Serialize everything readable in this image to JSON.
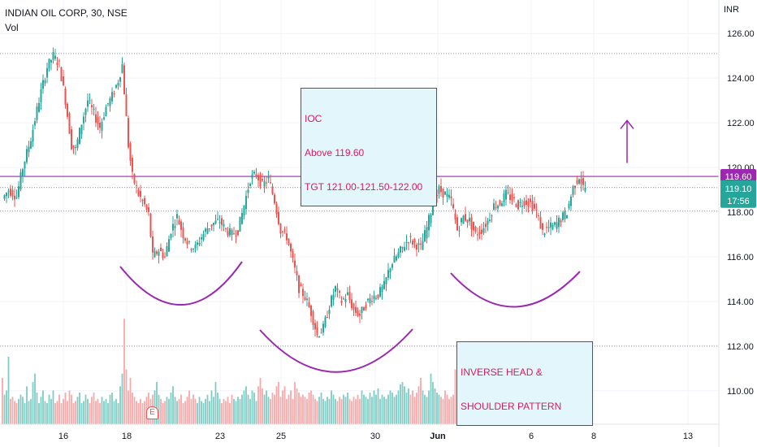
{
  "header": {
    "symbol_line": "INDIAN OIL CORP, 30, NSE",
    "volume_label": "Vol"
  },
  "axis": {
    "currency": "INR"
  },
  "annotations": {
    "ioc_box": {
      "line1": "IOC",
      "line2": "Above 119.60",
      "line3": "TGT 121.00-121.50-122.00"
    },
    "pattern_box": {
      "line1": "INVERSE HEAD &",
      "line2": "SHOULDER PATTERN"
    },
    "earnings_marker": "E"
  },
  "badges": {
    "level": "119.60",
    "last_price": "119.10",
    "countdown": "17:56"
  },
  "colors": {
    "up": "#26a69a",
    "down": "#ef5350",
    "up_vol": "#80cbc4",
    "down_vol": "#f7a9a7",
    "neckline": "#9c27b0",
    "curve": "#9c27b0",
    "grid": "#f0f3fa",
    "badge_level": "#9c27b0",
    "badge_price": "#26a69a"
  },
  "chart_data": {
    "type": "candlestick",
    "title": "INDIAN OIL CORP, 30, NSE",
    "ylabel": "INR",
    "ylim": [
      108.5,
      127.5
    ],
    "y_ticks": [
      110,
      112,
      114,
      116,
      118,
      120,
      122,
      124,
      126
    ],
    "x_ticks": [
      "16",
      "18",
      "23",
      "25",
      "30",
      "Jun",
      "6",
      "8",
      "13"
    ],
    "neckline": 119.6,
    "last_price": 119.1,
    "horizontal_dotted_levels": [
      125.1,
      119.1,
      118.05,
      112.0
    ],
    "target_arrow": [
      120.2,
      122.1
    ],
    "price_path": [
      [
        0,
        118.6
      ],
      [
        3,
        119.0
      ],
      [
        7,
        118.7
      ],
      [
        10,
        120.0
      ],
      [
        14,
        121.3
      ],
      [
        18,
        123.0
      ],
      [
        22,
        124.5
      ],
      [
        25,
        125.0
      ],
      [
        28,
        124.6
      ],
      [
        31,
        123.0
      ],
      [
        34,
        121.0
      ],
      [
        36,
        120.8
      ],
      [
        39,
        122.0
      ],
      [
        42,
        123.0
      ],
      [
        45,
        122.4
      ],
      [
        48,
        121.8
      ],
      [
        51,
        122.7
      ],
      [
        54,
        123.2
      ],
      [
        57,
        123.9
      ],
      [
        59,
        124.6
      ],
      [
        62,
        121.0
      ],
      [
        64,
        119.6
      ],
      [
        67,
        118.8
      ],
      [
        70,
        118.3
      ],
      [
        72,
        117.9
      ],
      [
        74,
        116.0
      ],
      [
        77,
        116.3
      ],
      [
        80,
        116.0
      ],
      [
        83,
        117.2
      ],
      [
        86,
        117.8
      ],
      [
        89,
        117.0
      ],
      [
        92,
        116.5
      ],
      [
        95,
        116.4
      ],
      [
        98,
        116.9
      ],
      [
        101,
        117.3
      ],
      [
        104,
        117.5
      ],
      [
        107,
        117.6
      ],
      [
        110,
        117.2
      ],
      [
        113,
        117.0
      ],
      [
        116,
        117.2
      ],
      [
        119,
        118.3
      ],
      [
        122,
        119.5
      ],
      [
        125,
        119.7
      ],
      [
        128,
        119.2
      ],
      [
        131,
        119.5
      ],
      [
        134,
        118.5
      ],
      [
        137,
        117.2
      ],
      [
        140,
        116.9
      ],
      [
        143,
        115.8
      ],
      [
        146,
        114.6
      ],
      [
        149,
        114.2
      ],
      [
        152,
        113.5
      ],
      [
        155,
        112.5
      ],
      [
        158,
        112.8
      ],
      [
        161,
        113.8
      ],
      [
        164,
        114.6
      ],
      [
        167,
        114.0
      ],
      [
        170,
        114.3
      ],
      [
        173,
        113.6
      ],
      [
        176,
        113.4
      ],
      [
        179,
        113.9
      ],
      [
        182,
        114.2
      ],
      [
        185,
        114.3
      ],
      [
        188,
        114.7
      ],
      [
        191,
        115.6
      ],
      [
        194,
        116.0
      ],
      [
        197,
        116.4
      ],
      [
        200,
        116.8
      ],
      [
        203,
        116.6
      ],
      [
        206,
        116.4
      ],
      [
        209,
        117.3
      ],
      [
        212,
        118.4
      ],
      [
        215,
        119.0
      ],
      [
        218,
        118.8
      ],
      [
        221,
        118.5
      ],
      [
        224,
        117.2
      ],
      [
        227,
        117.8
      ],
      [
        230,
        117.6
      ],
      [
        233,
        117.0
      ],
      [
        236,
        117.2
      ],
      [
        239,
        117.6
      ],
      [
        242,
        118.3
      ],
      [
        245,
        118.4
      ],
      [
        248,
        118.8
      ],
      [
        251,
        118.6
      ],
      [
        254,
        118.3
      ],
      [
        257,
        118.5
      ],
      [
        260,
        118.4
      ],
      [
        263,
        118.0
      ],
      [
        266,
        117.1
      ],
      [
        269,
        117.3
      ],
      [
        272,
        117.4
      ],
      [
        275,
        117.7
      ],
      [
        278,
        118.0
      ],
      [
        281,
        119.1
      ],
      [
        284,
        119.6
      ],
      [
        286,
        119.1
      ]
    ],
    "volume": [
      2.2,
      1.4,
      1.6,
      3.2,
      1.2,
      1.3,
      1.1,
      1.0,
      1.2,
      1.4,
      1.3,
      1.0,
      1.8,
      1.1,
      1.2,
      2.0,
      2.4,
      1.5,
      1.0,
      1.3,
      1.6,
      1.1,
      1.0,
      1.4,
      1.2,
      1.6,
      1.0,
      1.1,
      1.4,
      1.0,
      1.2,
      1.5,
      1.1,
      1.6,
      1.4,
      1.0,
      1.1,
      1.3,
      1.5,
      1.0,
      1.1,
      1.4,
      1.2,
      1.0,
      1.3,
      1.5,
      1.1,
      1.2,
      1.0,
      1.3,
      1.1,
      1.2,
      1.0,
      1.4,
      1.5,
      1.1,
      1.2,
      1.0,
      1.8,
      2.4,
      5.0,
      2.6,
      1.6,
      2.2,
      1.5,
      1.3,
      1.1,
      1.0,
      1.2,
      1.0,
      1.1,
      1.3,
      1.5,
      1.2,
      1.4,
      1.6,
      2.0,
      1.4,
      1.2,
      1.0,
      1.1,
      1.3,
      1.2,
      1.5,
      1.8,
      1.3,
      1.1,
      1.2,
      1.4,
      1.0,
      1.1,
      1.3,
      1.6,
      1.2,
      1.4,
      1.2,
      1.0,
      1.3,
      1.1,
      1.0,
      1.2,
      1.4,
      1.1,
      1.6,
      1.3,
      2.0,
      1.5,
      1.2,
      1.0,
      1.2,
      1.1,
      1.3,
      1.0,
      1.4,
      1.2,
      1.1,
      1.3,
      1.2,
      1.4,
      1.6,
      1.8,
      1.4,
      1.2,
      1.6,
      1.5,
      1.1,
      1.8,
      2.2,
      1.7,
      1.4,
      1.6,
      1.3,
      1.2,
      1.5,
      1.4,
      1.8,
      2.0,
      1.3,
      1.6,
      1.8,
      1.2,
      1.4,
      1.6,
      1.2,
      2.0,
      1.7,
      1.5,
      1.3,
      1.4,
      1.3,
      1.2,
      1.5,
      1.6,
      1.4,
      1.2,
      1.1,
      1.3,
      1.5,
      1.2,
      1.1,
      1.3,
      1.2,
      1.6,
      1.4,
      1.2,
      1.1,
      1.3,
      1.2,
      1.4,
      1.3,
      1.5,
      1.2,
      1.1,
      1.3,
      1.2,
      1.4,
      1.2,
      1.6,
      1.4,
      1.3,
      1.2,
      1.5,
      1.3,
      1.6,
      1.4,
      1.7,
      1.2,
      1.4,
      1.3,
      1.2,
      1.4,
      1.6,
      1.5,
      1.3,
      1.4,
      1.6,
      1.9,
      2.0,
      1.8,
      1.5,
      1.7,
      1.4,
      1.6,
      1.3,
      1.5,
      1.8,
      2.2,
      1.6,
      1.4,
      1.3,
      1.6,
      2.4,
      2.0,
      1.7,
      1.5,
      1.4,
      1.3,
      1.2,
      1.6,
      1.4,
      1.2,
      1.3,
      1.4,
      2.6,
      1.8,
      1.5,
      1.4,
      1.3,
      1.2,
      1.5,
      1.4,
      1.6,
      1.3,
      1.2,
      1.1,
      1.3,
      1.4,
      1.2,
      1.3,
      1.5,
      1.4,
      1.6,
      1.8,
      1.5,
      1.4,
      1.3,
      1.2,
      1.6,
      1.5,
      2.0,
      1.8,
      1.5,
      1.4,
      1.3,
      1.2,
      1.4,
      1.3,
      1.5,
      1.2,
      1.3,
      1.4,
      1.3,
      1.5,
      1.6,
      1.4,
      1.3,
      1.2,
      1.1,
      1.3,
      1.4,
      1.6,
      1.8,
      1.2,
      1.1
    ]
  }
}
